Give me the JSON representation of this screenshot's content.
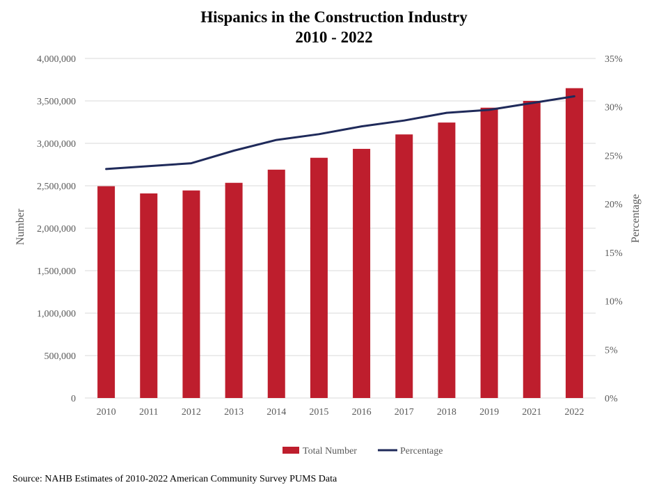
{
  "chart_data": {
    "type": "bar",
    "title": "Hispanics in the Construction Industry",
    "subtitle": "2010 - 2022",
    "categories": [
      "2010",
      "2011",
      "2012",
      "2013",
      "2014",
      "2015",
      "2016",
      "2017",
      "2018",
      "2019",
      "2021",
      "2022"
    ],
    "series": [
      {
        "name": "Total Number",
        "type": "bar",
        "axis": "left",
        "color": "#BE1E2D",
        "values": [
          2495000,
          2410000,
          2445000,
          2535000,
          2690000,
          2830000,
          2935000,
          3105000,
          3245000,
          3420000,
          3500000,
          3650000
        ]
      },
      {
        "name": "Percentage",
        "type": "line",
        "axis": "right",
        "color": "#1F2A5A",
        "values": [
          23.6,
          23.9,
          24.2,
          25.5,
          26.6,
          27.2,
          28.0,
          28.6,
          29.4,
          29.7,
          30.4,
          31.1
        ]
      }
    ],
    "y_left": {
      "label": "Number",
      "min": 0,
      "max": 4000000,
      "ticks": [
        "0",
        "500,000",
        "1,000,000",
        "1,500,000",
        "2,000,000",
        "2,500,000",
        "3,000,000",
        "3,500,000",
        "4,000,000"
      ]
    },
    "y_right": {
      "label": "Percentage",
      "min": 0,
      "max": 35,
      "ticks": [
        "0%",
        "5%",
        "10%",
        "15%",
        "20%",
        "25%",
        "30%",
        "35%"
      ]
    },
    "grid": true,
    "legend_position": "bottom",
    "legend": [
      "Total Number",
      "Percentage"
    ],
    "source": "Source: NAHB Estimates of 2010-2022  American Community  Survey PUMS Data"
  }
}
